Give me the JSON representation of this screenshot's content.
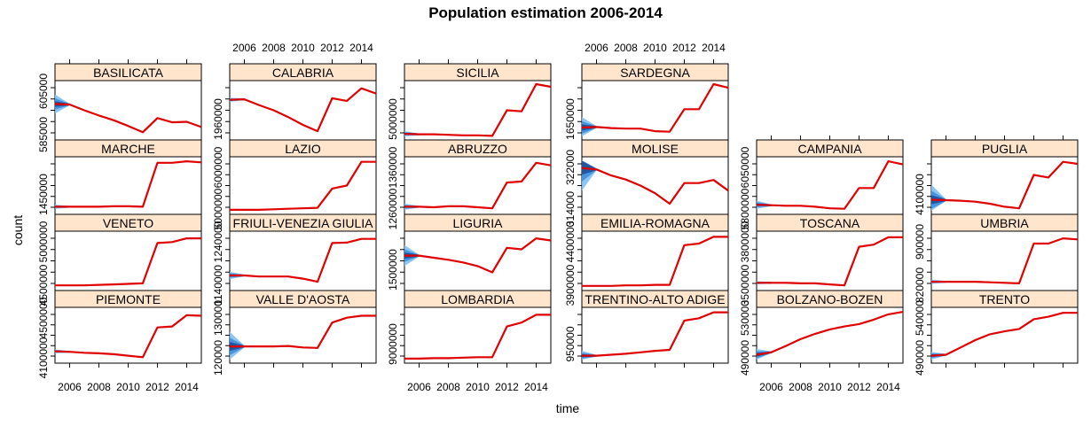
{
  "chart_data": {
    "type": "line",
    "title": "Population estimation 2006-2014",
    "xlabel": "time",
    "ylabel": "count",
    "x_tick_labels": [
      "2006",
      "2008",
      "2010",
      "2012",
      "2014"
    ],
    "years": [
      2005,
      2006,
      2007,
      2008,
      2009,
      2010,
      2011,
      2012,
      2013,
      2014,
      2015
    ],
    "colors": {
      "line": "#e00000",
      "band_light": "#7ec0f5",
      "band_mid": "#3f8fdc",
      "band_dark": "#1f4f9a",
      "strip": "#ffe5cc"
    },
    "panels": [
      {
        "name": "BASILICATA",
        "y_ticks": [
          "585000",
          "605000"
        ],
        "band_width": 0.18,
        "values": [
          0.62,
          0.61,
          0.5,
          0.4,
          0.31,
          0.2,
          0.08,
          0.35,
          0.27,
          0.28,
          0.18
        ]
      },
      {
        "name": "CALABRIA",
        "y_ticks": [
          "1960000"
        ],
        "band_width": 0.04,
        "values": [
          0.7,
          0.71,
          0.6,
          0.5,
          0.37,
          0.22,
          0.1,
          0.73,
          0.68,
          0.92,
          0.82
        ]
      },
      {
        "name": "SICILIA",
        "y_ticks": [
          "5000000"
        ],
        "band_width": 0.05,
        "values": [
          0.05,
          0.04,
          0.04,
          0.03,
          0.02,
          0.02,
          0.01,
          0.5,
          0.48,
          1.0,
          0.95
        ]
      },
      {
        "name": "SARDEGNA",
        "y_ticks": [
          "1650000"
        ],
        "band_width": 0.2,
        "values": [
          0.17,
          0.18,
          0.16,
          0.15,
          0.15,
          0.1,
          0.09,
          0.52,
          0.52,
          1.0,
          0.93
        ]
      },
      {
        "name": "MARCHE",
        "y_ticks": [
          "1450000"
        ],
        "band_width": 0.04,
        "values": [
          0.08,
          0.08,
          0.08,
          0.08,
          0.09,
          0.09,
          0.08,
          0.95,
          0.95,
          0.98,
          0.96
        ]
      },
      {
        "name": "LAZIO",
        "y_ticks": [
          "5000000",
          "6000000"
        ],
        "band_width": 0.0,
        "values": [
          0.02,
          0.02,
          0.02,
          0.03,
          0.04,
          0.05,
          0.06,
          0.44,
          0.5,
          0.97,
          0.97
        ]
      },
      {
        "name": "ABRUZZO",
        "y_ticks": [
          "1260000",
          "1360000"
        ],
        "band_width": 0.06,
        "values": [
          0.08,
          0.08,
          0.07,
          0.09,
          0.09,
          0.07,
          0.05,
          0.56,
          0.58,
          0.95,
          0.9
        ]
      },
      {
        "name": "MOLISE",
        "y_ticks": [
          "314000",
          "322000"
        ],
        "band_width": 0.45,
        "values": [
          0.85,
          0.82,
          0.7,
          0.62,
          0.5,
          0.35,
          0.14,
          0.55,
          0.55,
          0.61,
          0.4
        ]
      },
      {
        "name": "CAMPANIA",
        "y_ticks": [
          "5800000",
          "6050000"
        ],
        "band_width": 0.08,
        "values": [
          0.12,
          0.11,
          0.1,
          0.1,
          0.08,
          0.05,
          0.04,
          0.45,
          0.45,
          0.98,
          0.92
        ]
      },
      {
        "name": "PUGLIA",
        "y_ticks": [
          "4100000"
        ],
        "band_width": 0.3,
        "values": [
          0.22,
          0.21,
          0.2,
          0.18,
          0.14,
          0.08,
          0.05,
          0.71,
          0.66,
          0.97,
          0.93
        ]
      },
      {
        "name": "VENETO",
        "y_ticks": [
          "4500000",
          "5000000"
        ],
        "band_width": 0.0,
        "values": [
          0.03,
          0.03,
          0.03,
          0.04,
          0.05,
          0.06,
          0.07,
          0.84,
          0.86,
          0.93,
          0.93
        ]
      },
      {
        "name": "FRIULI-VENEZIA GIULIA",
        "y_ticks": [
          "1140000",
          "1240000"
        ],
        "band_width": 0.07,
        "values": [
          0.22,
          0.22,
          0.2,
          0.2,
          0.2,
          0.16,
          0.1,
          0.84,
          0.85,
          0.92,
          0.92
        ]
      },
      {
        "name": "LIGURIA",
        "y_ticks": [
          "1500000"
        ],
        "band_width": 0.2,
        "values": [
          0.6,
          0.6,
          0.56,
          0.52,
          0.47,
          0.4,
          0.28,
          0.75,
          0.72,
          0.93,
          0.89
        ]
      },
      {
        "name": "EMILIA-ROMAGNA",
        "y_ticks": [
          "3900000",
          "4400000"
        ],
        "band_width": 0.0,
        "values": [
          0.02,
          0.02,
          0.02,
          0.03,
          0.03,
          0.04,
          0.04,
          0.8,
          0.83,
          0.96,
          0.96
        ]
      },
      {
        "name": "TOSCANA",
        "y_ticks": [
          "3500000",
          "3800000"
        ],
        "band_width": 0.03,
        "values": [
          0.08,
          0.08,
          0.08,
          0.07,
          0.07,
          0.05,
          0.03,
          0.77,
          0.81,
          0.95,
          0.95
        ]
      },
      {
        "name": "UMBRIA",
        "y_ticks": [
          "820000",
          "900000"
        ],
        "band_width": 0.04,
        "values": [
          0.1,
          0.1,
          0.1,
          0.1,
          0.09,
          0.08,
          0.07,
          0.83,
          0.83,
          0.93,
          0.91
        ]
      },
      {
        "name": "PIEMONTE",
        "y_ticks": [
          "4100000",
          "4500000"
        ],
        "band_width": 0.04,
        "values": [
          0.17,
          0.16,
          0.14,
          0.13,
          0.11,
          0.08,
          0.05,
          0.66,
          0.68,
          0.91,
          0.9
        ]
      },
      {
        "name": "VALLE D'AOSTA",
        "y_ticks": [
          "120000",
          "130000"
        ],
        "band_width": 0.3,
        "values": [
          0.27,
          0.27,
          0.27,
          0.27,
          0.28,
          0.25,
          0.24,
          0.76,
          0.86,
          0.9,
          0.9
        ]
      },
      {
        "name": "LOMBARDIA",
        "y_ticks": [
          "9000000"
        ],
        "band_width": 0.0,
        "values": [
          0.02,
          0.02,
          0.03,
          0.03,
          0.04,
          0.05,
          0.05,
          0.68,
          0.76,
          0.92,
          0.92
        ]
      },
      {
        "name": "TRENTINO-ALTO ADIGE",
        "y_ticks": [
          "950000"
        ],
        "band_width": 0.1,
        "values": [
          0.08,
          0.08,
          0.1,
          0.12,
          0.15,
          0.18,
          0.2,
          0.8,
          0.85,
          0.97,
          0.97
        ]
      },
      {
        "name": "BOLZANO-BOZEN",
        "y_ticks": [
          "490000",
          "530000"
        ],
        "band_width": 0.12,
        "values": [
          0.1,
          0.15,
          0.28,
          0.42,
          0.53,
          0.62,
          0.68,
          0.73,
          0.82,
          0.93,
          0.98
        ]
      },
      {
        "name": "TRENTO",
        "y_ticks": [
          "490000",
          "540000"
        ],
        "band_width": 0.08,
        "values": [
          0.08,
          0.1,
          0.25,
          0.4,
          0.52,
          0.58,
          0.63,
          0.83,
          0.88,
          0.96,
          0.96
        ]
      }
    ]
  }
}
